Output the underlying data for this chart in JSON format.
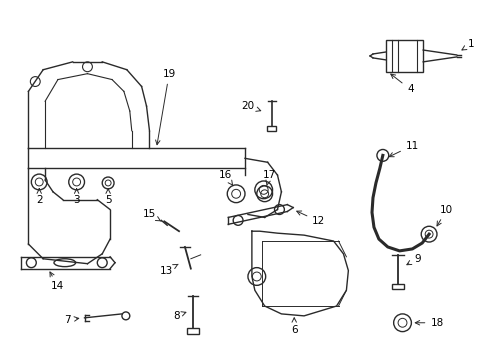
{
  "background_color": "#ffffff",
  "line_color": "#2a2a2a",
  "text_color": "#000000",
  "figsize": [
    4.89,
    3.6
  ],
  "dpi": 100
}
